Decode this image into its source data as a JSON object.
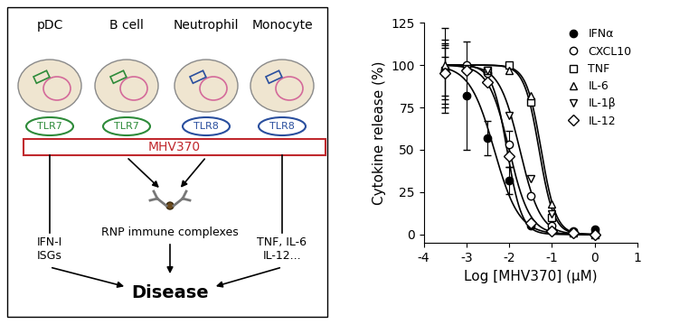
{
  "diagram": {
    "cells": [
      {
        "name": "pDC",
        "receptor": "TLR7",
        "color": "#2e8b3a"
      },
      {
        "name": "B cell",
        "receptor": "TLR7",
        "color": "#2e8b3a"
      },
      {
        "name": "Neutrophil",
        "receptor": "TLR8",
        "color": "#2a4f9e"
      },
      {
        "name": "Monocyte",
        "receptor": "TLR8",
        "color": "#2a4f9e"
      }
    ],
    "drug": {
      "label": "MHV370",
      "color": "#c0282d"
    },
    "outputs": {
      "left": "IFN-I\nISGs",
      "center": "RNP immune complexes",
      "right": "TNF, IL-6\nIL-12..."
    },
    "outcome": "Disease"
  },
  "chart_data": {
    "type": "line",
    "x_label": "Log [MHV370] (µM)",
    "y_label": "Cytokine release (%)",
    "xlim": [
      -4,
      1
    ],
    "xticks": [
      -4,
      -3,
      -2,
      -1,
      0,
      1
    ],
    "ylim": [
      -5,
      125
    ],
    "yticks": [
      0,
      25,
      50,
      75,
      100,
      125
    ],
    "legend": "upper right",
    "x": [
      -3.5,
      -3,
      -2.5,
      -2,
      -1.5,
      -1,
      -0.5,
      0
    ],
    "fit_top": 100,
    "fit_bottom": 0,
    "series": [
      {
        "name": "IFNα",
        "color": "#000000",
        "marker": "filled circle",
        "values": [
          95,
          82,
          57,
          32,
          5,
          3,
          2,
          3
        ],
        "errors": [
          20,
          32,
          10,
          8,
          null,
          null,
          null,
          null
        ],
        "log_ic50": -2.35,
        "hill": 1.5
      },
      {
        "name": "CXCL10",
        "color": "#000000",
        "marker": "open circle",
        "values": [
          97,
          100,
          95,
          53,
          23,
          5,
          1,
          0
        ],
        "errors": [
          25,
          null,
          null,
          8,
          null,
          null,
          null,
          null
        ],
        "log_ic50": -2.0,
        "hill": 1.8
      },
      {
        "name": "TNF",
        "color": "#000000",
        "marker": "open square",
        "values": [
          97,
          98,
          97,
          100,
          78,
          10,
          1,
          0
        ],
        "errors": [
          15,
          null,
          null,
          null,
          null,
          null,
          null,
          null
        ],
        "log_ic50": -1.3,
        "hill": 2.5
      },
      {
        "name": "IL-6",
        "color": "#000000",
        "marker": "open triangle_up",
        "values": [
          100,
          98,
          97,
          97,
          82,
          18,
          2,
          1
        ],
        "errors": [
          5,
          null,
          null,
          null,
          null,
          null,
          null,
          null
        ],
        "log_ic50": -1.25,
        "hill": 2.5
      },
      {
        "name": "IL-1β",
        "color": "#000000",
        "marker": "open triangle_down",
        "values": [
          95,
          97,
          97,
          70,
          33,
          12,
          1,
          0
        ],
        "errors": [
          18,
          null,
          null,
          null,
          null,
          null,
          null,
          null
        ],
        "log_ic50": -1.75,
        "hill": 1.8
      },
      {
        "name": "IL-12",
        "color": "#000000",
        "marker": "open diamond",
        "values": [
          95,
          97,
          90,
          46,
          7,
          2,
          1,
          0
        ],
        "errors": [
          15,
          null,
          null,
          6,
          null,
          null,
          null,
          null
        ],
        "log_ic50": -2.05,
        "hill": 2.5
      }
    ]
  }
}
